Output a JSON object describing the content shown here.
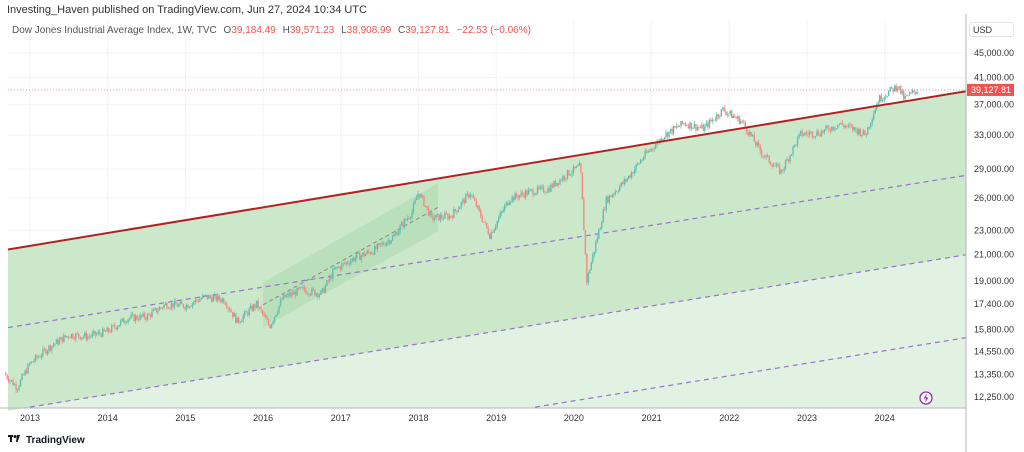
{
  "header": {
    "published": "Investing_Haven published on TradingView.com, Jun 27, 2024 10:34 UTC"
  },
  "legend": {
    "symbol": "Dow Jones Industrial Average Index, 1W, TVC",
    "o_label": "O",
    "o": "39,184.49",
    "h_label": "H",
    "h": "39,571.23",
    "l_label": "L",
    "l": "38,908.99",
    "c_label": "C",
    "c": "39,127.81",
    "change": "−22.53 (−0.06%)"
  },
  "price_axis": {
    "currency": "USD",
    "ticks": [
      "45,000.00",
      "41,000.00",
      "37,000.00",
      "33,000.00",
      "29,000.00",
      "26,000.00",
      "23,000.00",
      "21,000.00",
      "19,000.00",
      "17,400.00",
      "15,800.00",
      "14,550.00",
      "13,350.00",
      "12,250.00"
    ],
    "last_price": "39,127.81"
  },
  "time_axis": {
    "ticks": [
      "2013",
      "2014",
      "2015",
      "2016",
      "2017",
      "2018",
      "2019",
      "2020",
      "2021",
      "2022",
      "2023",
      "2024"
    ]
  },
  "footer": {
    "brand": "TradingView"
  },
  "colors": {
    "up": "#5fbfae",
    "down": "#f28b82",
    "trendline": "#b22222",
    "dashed": "#9575cd",
    "fill_dark": "#cbe8cb",
    "fill_light": "#e2f2e2",
    "last_price": "#ef5350"
  },
  "icons": [
    "tradingview-logo-icon",
    "lightning-icon"
  ],
  "chart_data": {
    "type": "candlestick",
    "scale": "log",
    "grid": true,
    "close_path": [
      [
        "2012-09",
        13400
      ],
      [
        "2012-11",
        12700
      ],
      [
        "2013-01",
        13900
      ],
      [
        "2013-04",
        14800
      ],
      [
        "2013-07",
        15500
      ],
      [
        "2013-10",
        15400
      ],
      [
        "2014-01",
        15700
      ],
      [
        "2014-04",
        16500
      ],
      [
        "2014-07",
        16600
      ],
      [
        "2014-10",
        17400
      ],
      [
        "2015-01",
        17300
      ],
      [
        "2015-04",
        17900
      ],
      [
        "2015-07",
        17700
      ],
      [
        "2015-09",
        16300
      ],
      [
        "2015-12",
        17400
      ],
      [
        "2016-02",
        16000
      ],
      [
        "2016-04",
        17800
      ],
      [
        "2016-07",
        18400
      ],
      [
        "2016-10",
        18100
      ],
      [
        "2016-12",
        19800
      ],
      [
        "2017-03",
        20700
      ],
      [
        "2017-06",
        21300
      ],
      [
        "2017-09",
        22400
      ],
      [
        "2017-12",
        24700
      ],
      [
        "2018-01",
        26600
      ],
      [
        "2018-03",
        24100
      ],
      [
        "2018-06",
        24300
      ],
      [
        "2018-09",
        26500
      ],
      [
        "2018-12",
        22600
      ],
      [
        "2019-03",
        25900
      ],
      [
        "2019-06",
        26600
      ],
      [
        "2019-09",
        26900
      ],
      [
        "2019-12",
        28500
      ],
      [
        "2020-02",
        29300
      ],
      [
        "2020-03",
        19000
      ],
      [
        "2020-06",
        25800
      ],
      [
        "2020-09",
        27800
      ],
      [
        "2020-12",
        30600
      ],
      [
        "2021-03",
        33000
      ],
      [
        "2021-06",
        34500
      ],
      [
        "2021-09",
        33800
      ],
      [
        "2021-12",
        36300
      ],
      [
        "2022-03",
        34700
      ],
      [
        "2022-06",
        30800
      ],
      [
        "2022-09",
        28700
      ],
      [
        "2022-12",
        33100
      ],
      [
        "2023-03",
        33300
      ],
      [
        "2023-06",
        34400
      ],
      [
        "2023-09",
        33500
      ],
      [
        "2023-10",
        33000
      ],
      [
        "2023-12",
        37700
      ],
      [
        "2024-03",
        39800
      ],
      [
        "2024-04",
        37800
      ],
      [
        "2024-06",
        39127.81
      ]
    ],
    "trendline": [
      [
        "2012-09",
        21350
      ],
      [
        "2025-01",
        38850
      ]
    ],
    "dashed_lines": [
      [
        [
          "2012-09",
          15890
        ],
        [
          "2025-01",
          28260
        ]
      ],
      [
        [
          "2013-01",
          11790
        ],
        [
          "2025-01",
          20930
        ]
      ],
      [
        [
          "2019-07",
          11790
        ],
        [
          "2025-01",
          15300
        ]
      ]
    ],
    "channel": {
      "start": "2016-01",
      "end": "2018-04",
      "start_range": [
        15950,
        18900
      ],
      "end_range": [
        22900,
        27500
      ]
    }
  }
}
